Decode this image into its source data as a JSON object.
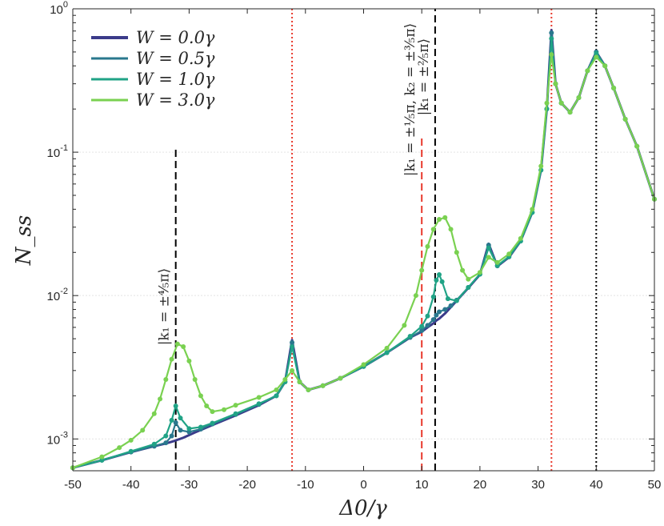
{
  "chart_data": {
    "type": "line",
    "title": "",
    "xlabel": "Δ0/γ",
    "ylabel": "N_ss",
    "xscale": "linear",
    "yscale": "log",
    "xlim": [
      -50,
      50
    ],
    "ylim": [
      0.0006,
      1
    ],
    "x_ticks": [
      -50,
      -40,
      -30,
      -20,
      -10,
      0,
      10,
      20,
      30,
      40,
      50
    ],
    "x_tick_labels": [
      "-50",
      "-40",
      "-30",
      "-20",
      "-10",
      "0",
      "10",
      "20",
      "30",
      "40",
      "50"
    ],
    "y_ticks": [
      {
        "value": 0.001,
        "mantissa": "10",
        "exp": "-3"
      },
      {
        "value": 0.01,
        "mantissa": "10",
        "exp": "-2"
      },
      {
        "value": 0.1,
        "mantissa": "10",
        "exp": "-1"
      },
      {
        "value": 1,
        "mantissa": "10",
        "exp": "0"
      }
    ],
    "legend_position": "top-left",
    "series": [
      {
        "name": "W = 0.0γ",
        "color": "#3b3b8a",
        "x": [
          -50,
          -45,
          -40,
          -36,
          -34,
          -32.5,
          -31,
          -29,
          -26,
          -22,
          -18,
          -15,
          -13.5,
          -12.3,
          -11,
          -9.5,
          -7,
          -4,
          0,
          4,
          8,
          10,
          11,
          12,
          12.5,
          13,
          14,
          15,
          16,
          18,
          20,
          21.5,
          23,
          25,
          27,
          29,
          30.5,
          31.5,
          32.3,
          33,
          34,
          35.5,
          37,
          38.5,
          40,
          41.5,
          43,
          45,
          47,
          50
        ],
        "y": [
          0.00063,
          0.00071,
          0.00081,
          0.00089,
          0.00093,
          0.00097,
          0.00102,
          0.00111,
          0.00125,
          0.00146,
          0.00172,
          0.002,
          0.0025,
          0.0049,
          0.0025,
          0.0022,
          0.00235,
          0.00265,
          0.0032,
          0.004,
          0.0051,
          0.0056,
          0.006,
          0.0064,
          0.0067,
          0.0069,
          0.0075,
          0.0083,
          0.0092,
          0.0113,
          0.014,
          0.023,
          0.016,
          0.0185,
          0.024,
          0.038,
          0.075,
          0.2,
          0.71,
          0.3,
          0.22,
          0.19,
          0.24,
          0.37,
          0.5,
          0.4,
          0.28,
          0.17,
          0.11,
          0.047
        ]
      },
      {
        "name": "W = 0.5γ",
        "color": "#2a788e",
        "x": [
          -50,
          -45,
          -40,
          -36,
          -34,
          -33,
          -32.3,
          -31.5,
          -30,
          -28,
          -26,
          -22,
          -18,
          -15,
          -13.5,
          -12.3,
          -11,
          -9.5,
          -7,
          -4,
          0,
          4,
          8,
          10,
          11,
          12,
          12.5,
          13,
          14,
          15,
          16,
          18,
          20,
          21.5,
          23,
          25,
          27,
          29,
          30.5,
          31.5,
          32.3,
          33,
          34,
          35.5,
          37,
          38.5,
          40,
          41.5,
          43,
          45,
          47,
          50
        ],
        "y": [
          0.00063,
          0.00071,
          0.00081,
          0.00089,
          0.00094,
          0.00105,
          0.0013,
          0.00115,
          0.00112,
          0.00117,
          0.00127,
          0.00148,
          0.00174,
          0.002,
          0.0025,
          0.0047,
          0.0025,
          0.0022,
          0.00235,
          0.00265,
          0.0032,
          0.004,
          0.0051,
          0.0057,
          0.0062,
          0.0068,
          0.0073,
          0.0077,
          0.008,
          0.0085,
          0.0093,
          0.0114,
          0.0141,
          0.0225,
          0.0161,
          0.0186,
          0.024,
          0.038,
          0.075,
          0.2,
          0.68,
          0.3,
          0.22,
          0.19,
          0.24,
          0.37,
          0.5,
          0.4,
          0.28,
          0.17,
          0.11,
          0.047
        ]
      },
      {
        "name": "W = 1.0γ",
        "color": "#20a386",
        "x": [
          -50,
          -45,
          -40,
          -36,
          -34,
          -33,
          -32.3,
          -31.5,
          -30,
          -28,
          -26,
          -22,
          -18,
          -15,
          -13.5,
          -12.3,
          -11,
          -9.5,
          -7,
          -4,
          0,
          4,
          8,
          10,
          11,
          12,
          12.5,
          13,
          13.5,
          14.5,
          16,
          18,
          20,
          21.5,
          23,
          25,
          27,
          29,
          30.5,
          31.5,
          32.3,
          33,
          34,
          35.5,
          37,
          38.5,
          40,
          41.5,
          43,
          45,
          47,
          50
        ],
        "y": [
          0.00063,
          0.00071,
          0.00082,
          0.00092,
          0.00105,
          0.00135,
          0.0017,
          0.0014,
          0.00118,
          0.00121,
          0.00129,
          0.0015,
          0.00176,
          0.002,
          0.0025,
          0.0044,
          0.0025,
          0.0022,
          0.00235,
          0.00265,
          0.0032,
          0.004,
          0.0052,
          0.0061,
          0.0072,
          0.0098,
          0.0128,
          0.014,
          0.0125,
          0.0095,
          0.0092,
          0.0114,
          0.0141,
          0.0215,
          0.0162,
          0.0187,
          0.024,
          0.038,
          0.075,
          0.2,
          0.62,
          0.3,
          0.22,
          0.19,
          0.24,
          0.37,
          0.49,
          0.4,
          0.28,
          0.17,
          0.11,
          0.047
        ]
      },
      {
        "name": "W = 3.0γ",
        "color": "#7ad151",
        "x": [
          -50,
          -45,
          -42,
          -40,
          -38,
          -36,
          -35,
          -34,
          -33,
          -32,
          -31,
          -30,
          -29,
          -28,
          -27,
          -26,
          -24,
          -22,
          -18,
          -15,
          -13.5,
          -12.3,
          -11,
          -9.5,
          -7,
          -4,
          0,
          4,
          7,
          9,
          10,
          11,
          12,
          13,
          14,
          15,
          16,
          17,
          18,
          20,
          21.5,
          23,
          25,
          27,
          29,
          30.5,
          31.5,
          32.3,
          33,
          34,
          35.5,
          37,
          38.5,
          40,
          41.5,
          43,
          45,
          47,
          50
        ],
        "y": [
          0.00063,
          0.00075,
          0.00087,
          0.00098,
          0.00115,
          0.0015,
          0.0019,
          0.0026,
          0.0036,
          0.0046,
          0.0044,
          0.0035,
          0.0026,
          0.002,
          0.0017,
          0.00155,
          0.0016,
          0.00172,
          0.00195,
          0.0022,
          0.0026,
          0.003,
          0.0025,
          0.0022,
          0.00235,
          0.00265,
          0.0033,
          0.0043,
          0.0062,
          0.01,
          0.015,
          0.022,
          0.029,
          0.034,
          0.035,
          0.029,
          0.02,
          0.015,
          0.013,
          0.0145,
          0.0185,
          0.017,
          0.0195,
          0.025,
          0.04,
          0.08,
          0.22,
          0.48,
          0.3,
          0.22,
          0.19,
          0.24,
          0.37,
          0.46,
          0.4,
          0.28,
          0.17,
          0.11,
          0.047
        ]
      }
    ],
    "reference_lines": [
      {
        "x": -32.3,
        "style": "dashed",
        "color": "#000000",
        "y_top": 0.11
      },
      {
        "x": -12.3,
        "style": "dotted",
        "color": "#e8392c",
        "y_top": 1
      },
      {
        "x": 10,
        "style": "dashed",
        "color": "#e8392c",
        "y_top": 0.13
      },
      {
        "x": 12.3,
        "style": "dashed",
        "color": "#000000",
        "y_top": 1
      },
      {
        "x": 32.3,
        "style": "dotted",
        "color": "#e8392c",
        "y_top": 1
      },
      {
        "x": 40,
        "style": "dotted",
        "color": "#000000",
        "y_top": 1
      }
    ],
    "annotations": [
      {
        "text": "|k₁ = ±⁴⁄₅π⟩",
        "x": -32.3,
        "y": 0.0045
      },
      {
        "text": "|k₁ = ±¹⁄₅π, k₂ = ±³⁄₅π⟩",
        "x": 10,
        "y": 0.068
      },
      {
        "text": "|k₁ = ±²⁄₅π⟩",
        "x": 12.3,
        "y": 0.18
      }
    ]
  }
}
